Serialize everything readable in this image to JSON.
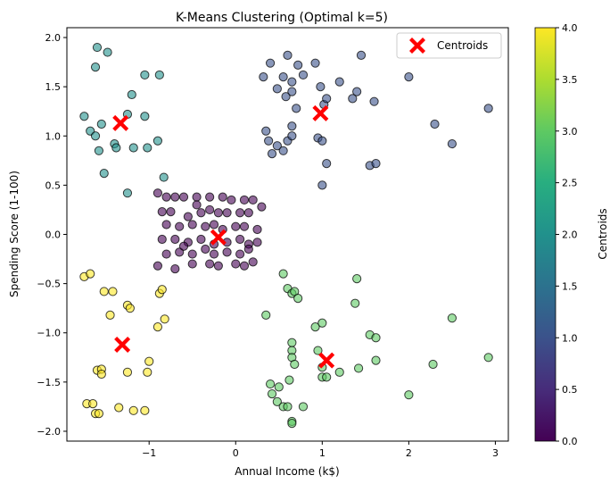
{
  "chart_data": {
    "type": "scatter",
    "title": "K-Means Clustering (Optimal k=5)",
    "xlabel": "Annual Income (k$)",
    "ylabel": "Spending Score (1-100)",
    "xlim": [
      -1.95,
      3.15
    ],
    "ylim": [
      -2.1,
      2.1
    ],
    "xticks": [
      -1,
      0,
      1,
      2,
      3
    ],
    "yticks": [
      -2.0,
      -1.5,
      -1.0,
      -0.5,
      0.0,
      0.5,
      1.0,
      1.5,
      2.0
    ],
    "grid": false,
    "legend": {
      "position": "top-right",
      "entries": [
        "Centroids"
      ]
    },
    "colorbar": {
      "label": "Centroids",
      "range": [
        0.0,
        4.0
      ],
      "ticks": [
        "0.0",
        "0.5",
        "1.0",
        "1.5",
        "2.0",
        "2.5",
        "3.0",
        "3.5",
        "4.0"
      ],
      "colormap": "viridis"
    },
    "clusters": [
      {
        "cluster": 0,
        "color": "#440154",
        "points": [
          [
            -0.9,
            0.42
          ],
          [
            -0.8,
            0.38
          ],
          [
            -0.7,
            0.38
          ],
          [
            -0.6,
            0.38
          ],
          [
            -0.45,
            0.38
          ],
          [
            -0.3,
            0.38
          ],
          [
            -0.15,
            0.38
          ],
          [
            -0.05,
            0.35
          ],
          [
            0.1,
            0.35
          ],
          [
            0.2,
            0.35
          ],
          [
            -0.85,
            0.23
          ],
          [
            -0.75,
            0.23
          ],
          [
            -0.55,
            0.18
          ],
          [
            -0.4,
            0.22
          ],
          [
            -0.3,
            0.25
          ],
          [
            -0.2,
            0.22
          ],
          [
            -0.1,
            0.22
          ],
          [
            0.05,
            0.22
          ],
          [
            0.15,
            0.22
          ],
          [
            0.3,
            0.28
          ],
          [
            -0.8,
            0.1
          ],
          [
            -0.65,
            0.08
          ],
          [
            -0.5,
            0.1
          ],
          [
            -0.35,
            0.08
          ],
          [
            -0.25,
            0.1
          ],
          [
            -0.15,
            0.05
          ],
          [
            0.0,
            0.08
          ],
          [
            0.1,
            0.08
          ],
          [
            0.25,
            0.05
          ],
          [
            -0.85,
            -0.05
          ],
          [
            -0.7,
            -0.05
          ],
          [
            -0.55,
            -0.08
          ],
          [
            -0.4,
            -0.05
          ],
          [
            -0.25,
            -0.1
          ],
          [
            -0.1,
            -0.08
          ],
          [
            0.05,
            -0.05
          ],
          [
            0.15,
            -0.1
          ],
          [
            0.25,
            -0.08
          ],
          [
            -0.8,
            -0.2
          ],
          [
            -0.65,
            -0.18
          ],
          [
            -0.5,
            -0.2
          ],
          [
            -0.35,
            -0.15
          ],
          [
            -0.25,
            -0.2
          ],
          [
            -0.1,
            -0.18
          ],
          [
            0.05,
            -0.2
          ],
          [
            0.15,
            -0.15
          ],
          [
            -0.9,
            -0.32
          ],
          [
            -0.7,
            -0.35
          ],
          [
            -0.5,
            -0.3
          ],
          [
            -0.3,
            -0.3
          ],
          [
            -0.2,
            -0.32
          ],
          [
            0.0,
            -0.3
          ],
          [
            0.1,
            -0.32
          ],
          [
            0.2,
            -0.28
          ],
          [
            -0.6,
            -0.12
          ],
          [
            -0.45,
            0.3
          ]
        ]
      },
      {
        "cluster": 1,
        "color": "#3b528b",
        "points": [
          [
            0.32,
            1.6
          ],
          [
            0.4,
            1.74
          ],
          [
            0.48,
            1.48
          ],
          [
            0.55,
            1.6
          ],
          [
            0.58,
            1.4
          ],
          [
            0.6,
            1.82
          ],
          [
            0.65,
            1.45
          ],
          [
            0.65,
            1.55
          ],
          [
            0.7,
            1.28
          ],
          [
            0.72,
            1.72
          ],
          [
            0.78,
            1.62
          ],
          [
            0.92,
            1.74
          ],
          [
            0.98,
            1.5
          ],
          [
            1.02,
            1.32
          ],
          [
            1.05,
            1.38
          ],
          [
            1.2,
            1.55
          ],
          [
            1.35,
            1.38
          ],
          [
            1.4,
            1.45
          ],
          [
            1.45,
            1.82
          ],
          [
            1.6,
            1.35
          ],
          [
            2.0,
            1.6
          ],
          [
            0.35,
            1.05
          ],
          [
            0.38,
            0.95
          ],
          [
            0.42,
            0.82
          ],
          [
            0.48,
            0.9
          ],
          [
            0.55,
            0.85
          ],
          [
            0.6,
            0.95
          ],
          [
            0.65,
            1.0
          ],
          [
            0.65,
            1.1
          ],
          [
            0.95,
            0.98
          ],
          [
            1.0,
            0.95
          ],
          [
            1.05,
            0.72
          ],
          [
            1.0,
            0.5
          ],
          [
            1.55,
            0.7
          ],
          [
            1.62,
            0.72
          ],
          [
            2.3,
            1.12
          ],
          [
            2.5,
            0.92
          ],
          [
            2.92,
            1.28
          ]
        ]
      },
      {
        "cluster": 2,
        "color": "#21918c",
        "points": [
          [
            -1.6,
            1.9
          ],
          [
            -1.48,
            1.85
          ],
          [
            -1.62,
            1.7
          ],
          [
            -1.05,
            1.62
          ],
          [
            -0.88,
            1.62
          ],
          [
            -1.2,
            1.42
          ],
          [
            -1.25,
            1.22
          ],
          [
            -1.05,
            1.2
          ],
          [
            -1.75,
            1.2
          ],
          [
            -1.55,
            1.12
          ],
          [
            -1.68,
            1.05
          ],
          [
            -1.62,
            1.0
          ],
          [
            -1.4,
            0.92
          ],
          [
            -1.38,
            0.88
          ],
          [
            -1.18,
            0.88
          ],
          [
            -1.02,
            0.88
          ],
          [
            -0.9,
            0.95
          ],
          [
            -1.58,
            0.85
          ],
          [
            -1.52,
            0.62
          ],
          [
            -0.83,
            0.58
          ],
          [
            -1.25,
            0.42
          ]
        ]
      },
      {
        "cluster": 3,
        "color": "#5ec962",
        "points": [
          [
            0.55,
            -0.4
          ],
          [
            0.6,
            -0.55
          ],
          [
            0.65,
            -0.6
          ],
          [
            0.68,
            -0.58
          ],
          [
            0.72,
            -0.65
          ],
          [
            0.35,
            -0.82
          ],
          [
            0.92,
            -0.94
          ],
          [
            1.0,
            -0.9
          ],
          [
            1.4,
            -0.45
          ],
          [
            1.38,
            -0.7
          ],
          [
            1.55,
            -1.02
          ],
          [
            1.62,
            -1.05
          ],
          [
            2.5,
            -0.85
          ],
          [
            0.65,
            -1.1
          ],
          [
            0.65,
            -1.18
          ],
          [
            0.65,
            -1.25
          ],
          [
            0.68,
            -1.32
          ],
          [
            0.95,
            -1.18
          ],
          [
            1.0,
            -1.35
          ],
          [
            1.2,
            -1.4
          ],
          [
            1.42,
            -1.36
          ],
          [
            1.62,
            -1.28
          ],
          [
            1.0,
            -1.45
          ],
          [
            1.05,
            -1.45
          ],
          [
            0.4,
            -1.52
          ],
          [
            0.42,
            -1.62
          ],
          [
            0.48,
            -1.7
          ],
          [
            0.5,
            -1.55
          ],
          [
            0.55,
            -1.75
          ],
          [
            0.6,
            -1.75
          ],
          [
            0.62,
            -1.48
          ],
          [
            0.78,
            -1.75
          ],
          [
            0.65,
            -1.9
          ],
          [
            0.65,
            -1.92
          ],
          [
            2.0,
            -1.63
          ],
          [
            2.28,
            -1.32
          ],
          [
            2.92,
            -1.25
          ]
        ]
      },
      {
        "cluster": 4,
        "color": "#fde725",
        "points": [
          [
            -1.75,
            -0.43
          ],
          [
            -1.68,
            -0.4
          ],
          [
            -1.52,
            -0.58
          ],
          [
            -1.42,
            -0.58
          ],
          [
            -1.25,
            -0.72
          ],
          [
            -1.22,
            -0.75
          ],
          [
            -1.45,
            -0.82
          ],
          [
            -0.88,
            -0.6
          ],
          [
            -0.85,
            -0.56
          ],
          [
            -0.82,
            -0.86
          ],
          [
            -0.9,
            -0.94
          ],
          [
            -1.6,
            -1.38
          ],
          [
            -1.55,
            -1.37
          ],
          [
            -1.55,
            -1.42
          ],
          [
            -1.25,
            -1.4
          ],
          [
            -1.02,
            -1.4
          ],
          [
            -1.0,
            -1.29
          ],
          [
            -1.72,
            -1.72
          ],
          [
            -1.65,
            -1.72
          ],
          [
            -1.35,
            -1.76
          ],
          [
            -1.18,
            -1.79
          ],
          [
            -1.05,
            -1.79
          ],
          [
            -1.62,
            -1.82
          ],
          [
            -1.58,
            -1.82
          ]
        ]
      }
    ],
    "centroids": [
      [
        -0.2,
        -0.03
      ],
      [
        0.98,
        1.23
      ],
      [
        -1.33,
        1.13
      ],
      [
        1.05,
        -1.28
      ],
      [
        -1.31,
        -1.12
      ]
    ],
    "centroid_color": "#ff0000"
  }
}
